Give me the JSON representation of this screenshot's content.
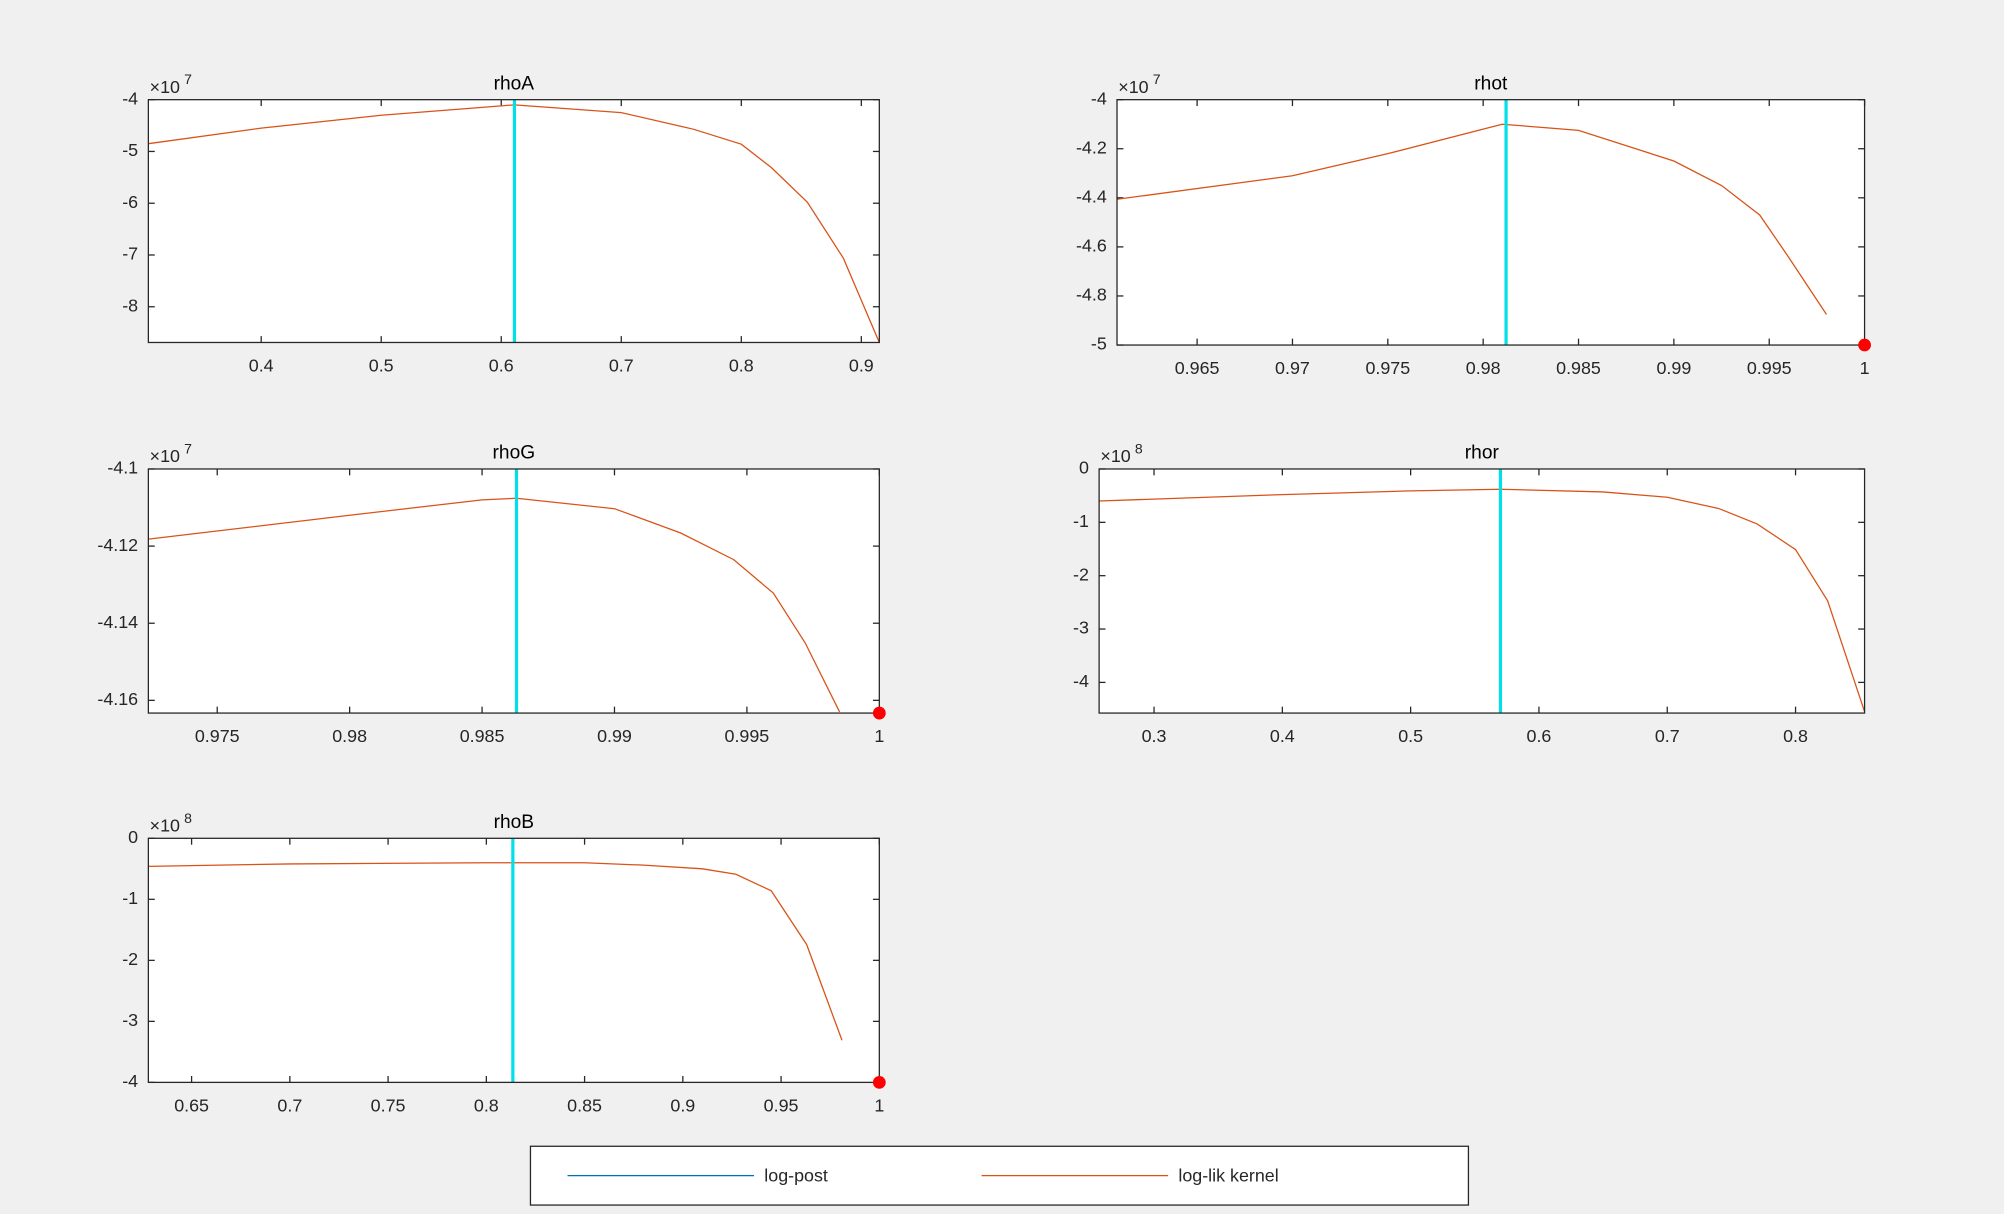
{
  "chart_data": [
    {
      "type": "line",
      "title": "rhoA",
      "y_multiplier": "×10",
      "y_exponent": 7,
      "xlim": [
        0.306,
        0.915
      ],
      "ylim": [
        -8.69,
        -4
      ],
      "xticks": [
        0.4,
        0.5,
        0.6,
        0.7,
        0.8,
        0.9
      ],
      "yticks": [
        -8,
        -7,
        -6,
        -5,
        -4
      ],
      "series": [
        {
          "color": "#d95319",
          "x": [
            0.306,
            0.4,
            0.5,
            0.6,
            0.611,
            0.7,
            0.76,
            0.8,
            0.825,
            0.855,
            0.885,
            0.915
          ],
          "values": [
            -4.85,
            -4.55,
            -4.3,
            -4.12,
            -4.1,
            -4.25,
            -4.57,
            -4.86,
            -5.31,
            -5.98,
            -7.06,
            -8.69
          ]
        }
      ],
      "mode_line": {
        "x": 0.611,
        "color": "#00e0e8"
      }
    },
    {
      "type": "line",
      "title": "rhot",
      "y_multiplier": "×10",
      "y_exponent": 7,
      "xlim": [
        0.9608,
        1
      ],
      "ylim": [
        -5,
        -4
      ],
      "xticks": [
        0.965,
        0.97,
        0.975,
        0.98,
        0.985,
        0.99,
        0.995,
        1
      ],
      "yticks": [
        -5,
        -4.8,
        -4.6,
        -4.4,
        -4.2,
        -4
      ],
      "series": [
        {
          "color": "#d95319",
          "x": [
            0.9608,
            0.97,
            0.975,
            0.98,
            0.981,
            0.985,
            0.99,
            0.9925,
            0.9945,
            0.996,
            0.998
          ],
          "values": [
            -4.406,
            -4.31,
            -4.22,
            -4.12,
            -4.1,
            -4.125,
            -4.25,
            -4.35,
            -4.47,
            -4.64,
            -4.875
          ]
        }
      ],
      "mode_line": {
        "x": 0.9812,
        "color": "#00e0e8"
      },
      "bound_marker": {
        "x": 1,
        "y": -5,
        "color": "#ff0000"
      }
    },
    {
      "type": "line",
      "title": "rhoG",
      "y_multiplier": "×10",
      "y_exponent": 7,
      "xlim": [
        0.9724,
        1
      ],
      "ylim": [
        -4.1633,
        -4.1
      ],
      "xticks": [
        0.975,
        0.98,
        0.985,
        0.99,
        0.995,
        1
      ],
      "yticks": [
        -4.16,
        -4.14,
        -4.12,
        -4.1
      ],
      "series": [
        {
          "color": "#d95319",
          "x": [
            0.9724,
            0.98,
            0.985,
            0.9863,
            0.99,
            0.9925,
            0.9945,
            0.996,
            0.9972,
            0.9985
          ],
          "values": [
            -4.1182,
            -4.112,
            -4.108,
            -4.1076,
            -4.1103,
            -4.1166,
            -4.1235,
            -4.1322,
            -4.1451,
            -4.163
          ]
        }
      ],
      "mode_line": {
        "x": 0.9863,
        "color": "#00e0e8"
      },
      "bound_marker": {
        "x": 1,
        "y": -4.1633,
        "color": "#ff0000"
      }
    },
    {
      "type": "line",
      "title": "rhor",
      "y_multiplier": "×10",
      "y_exponent": 8,
      "xlim": [
        0.2572,
        0.8538
      ],
      "ylim": [
        -4.575,
        0
      ],
      "xticks": [
        0.3,
        0.4,
        0.5,
        0.6,
        0.7,
        0.8
      ],
      "yticks": [
        -4,
        -3,
        -2,
        -1,
        0
      ],
      "series": [
        {
          "color": "#d95319",
          "x": [
            0.2572,
            0.4,
            0.5,
            0.57,
            0.65,
            0.7,
            0.74,
            0.77,
            0.8,
            0.825,
            0.8538
          ],
          "values": [
            -0.6,
            -0.48,
            -0.41,
            -0.38,
            -0.43,
            -0.53,
            -0.74,
            -1.03,
            -1.51,
            -2.47,
            -4.55
          ]
        }
      ],
      "mode_line": {
        "x": 0.57,
        "color": "#00e0e8"
      }
    },
    {
      "type": "line",
      "title": "rhoB",
      "y_multiplier": "×10",
      "y_exponent": 8,
      "xlim": [
        0.628,
        1
      ],
      "ylim": [
        -4,
        0
      ],
      "xticks": [
        0.65,
        0.7,
        0.75,
        0.8,
        0.85,
        0.9,
        0.95,
        1
      ],
      "yticks": [
        -4,
        -3,
        -2,
        -1,
        0
      ],
      "series": [
        {
          "color": "#d95319",
          "x": [
            0.628,
            0.7,
            0.8,
            0.85,
            0.88,
            0.91,
            0.927,
            0.945,
            0.963,
            0.981
          ],
          "values": [
            -0.46,
            -0.42,
            -0.4,
            -0.4,
            -0.44,
            -0.5,
            -0.59,
            -0.86,
            -1.74,
            -3.31
          ]
        }
      ],
      "mode_line": {
        "x": 0.8135,
        "color": "#00e0e8"
      },
      "bound_marker": {
        "x": 1,
        "y": -4,
        "color": "#ff0000"
      }
    }
  ],
  "legend": {
    "entries": [
      {
        "name": "log-post",
        "color": "#0072bd"
      },
      {
        "name": "log-lik kernel",
        "color": "#d95319"
      }
    ]
  }
}
